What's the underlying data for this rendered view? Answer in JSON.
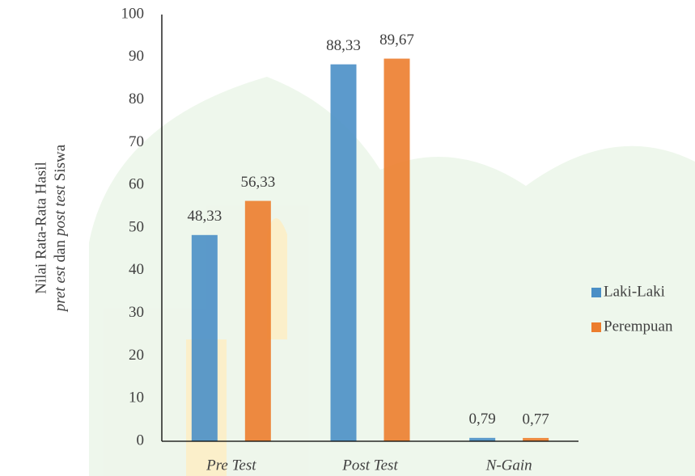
{
  "chart_data": {
    "type": "bar",
    "y_label": {
      "line1": "Nilai Rata-Rata Hasil",
      "line2": [
        {
          "text": "pret est",
          "italic": true
        },
        {
          "text": "dan",
          "italic": false
        },
        {
          "text": "post test",
          "italic": true
        },
        {
          "text": "Siswa",
          "italic": false
        }
      ]
    },
    "categories": [
      "Pre Test",
      "Post Test",
      "N-Gain"
    ],
    "categories_italic": true,
    "series": [
      {
        "name": "Laki-Laki",
        "color": "#4a8fc6",
        "values": [
          48.33,
          88.33,
          0.79
        ],
        "value_labels": [
          "48,33",
          "88,33",
          "0,79"
        ]
      },
      {
        "name": "Perempuan",
        "color": "#ec7d2d",
        "values": [
          56.33,
          89.67,
          0.77
        ],
        "value_labels": [
          "56,33",
          "89,67",
          "0,77"
        ]
      }
    ],
    "ylim": [
      0,
      100
    ],
    "yticks": [
      0,
      10,
      20,
      30,
      40,
      50,
      60,
      70,
      80,
      90,
      100
    ],
    "grid": false,
    "legend": "right"
  }
}
